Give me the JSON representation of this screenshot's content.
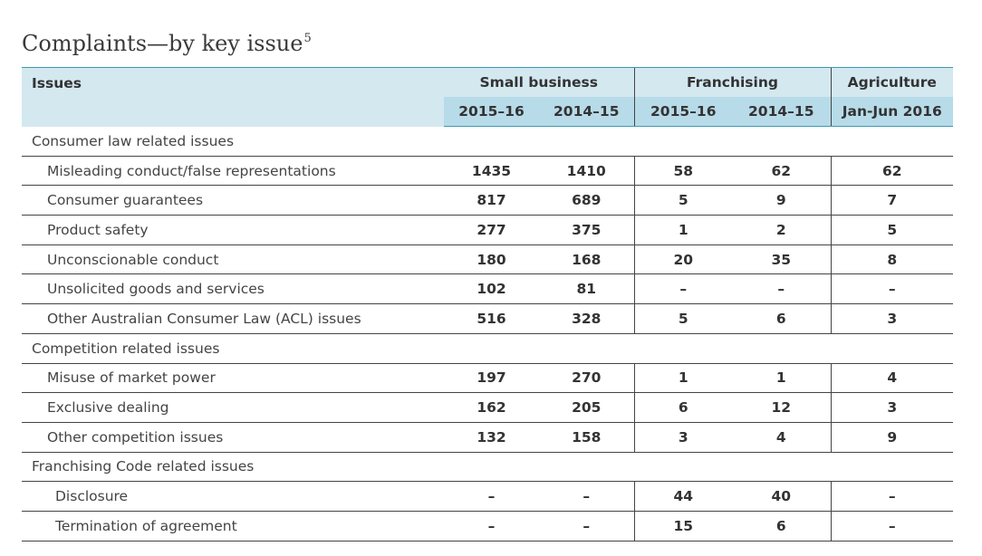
{
  "title": "Complaints—by key issue",
  "title_note": "5",
  "table": {
    "header": {
      "issues": "Issues",
      "groups": [
        "Small business",
        "Franchising",
        "Agriculture"
      ],
      "periods": [
        "2015–16",
        "2014–15",
        "2015–16",
        "2014–15",
        "Jan-Jun 2016"
      ]
    },
    "sections": [
      {
        "title": "Consumer law related issues",
        "rows": [
          {
            "label": "Misleading conduct/false representations",
            "values": [
              1435,
              1410,
              58,
              62,
              62
            ]
          },
          {
            "label": "Consumer guarantees",
            "values": [
              817,
              689,
              5,
              9,
              7
            ]
          },
          {
            "label": "Product safety",
            "values": [
              277,
              375,
              1,
              2,
              5
            ]
          },
          {
            "label": "Unconscionable conduct",
            "values": [
              180,
              168,
              20,
              35,
              8
            ]
          },
          {
            "label": "Unsolicited goods and services",
            "values": [
              102,
              81,
              "–",
              "–",
              "–"
            ]
          },
          {
            "label": "Other Australian Consumer Law (ACL) issues",
            "values": [
              516,
              328,
              5,
              6,
              3
            ]
          }
        ]
      },
      {
        "title": "Competition related issues",
        "rows": [
          {
            "label": "Misuse of market power",
            "values": [
              197,
              270,
              1,
              1,
              4
            ]
          },
          {
            "label": "Exclusive dealing",
            "values": [
              162,
              205,
              6,
              12,
              3
            ]
          },
          {
            "label": "Other competition issues",
            "values": [
              132,
              158,
              3,
              4,
              9
            ]
          }
        ]
      },
      {
        "title": "Franchising Code related issues",
        "rows": [
          {
            "label": "Disclosure",
            "values": [
              "–",
              "–",
              44,
              40,
              "–"
            ]
          },
          {
            "label": "Termination of agreement",
            "values": [
              "–",
              "–",
              15,
              6,
              "–"
            ]
          }
        ]
      }
    ]
  }
}
